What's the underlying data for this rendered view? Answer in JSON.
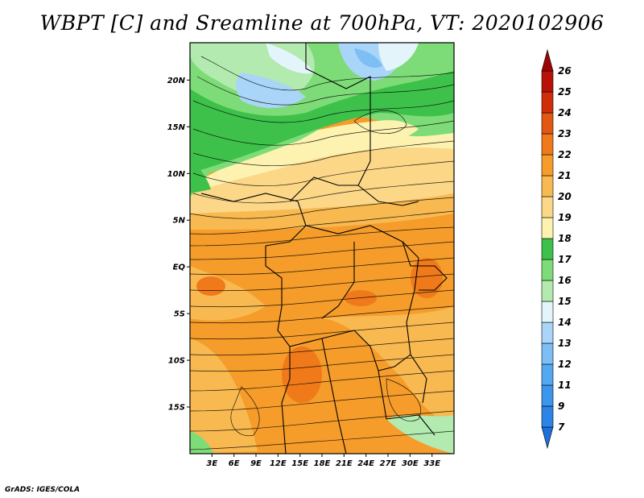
{
  "title": "WBPT [C] and Sreamline at 700hPa, VT: 2020102906",
  "credit": "GrADS: IGES/COLA",
  "map": {
    "variable": "Wet-bulb potential temperature (WBPT) with streamlines",
    "level": "700hPa",
    "valid_time": "2020102906",
    "lat_range": [
      -20,
      24
    ],
    "lon_range": [
      0,
      36
    ],
    "lat_ticks": [
      {
        "label": "20N",
        "value": 20
      },
      {
        "label": "15N",
        "value": 15
      },
      {
        "label": "10N",
        "value": 10
      },
      {
        "label": "5N",
        "value": 5
      },
      {
        "label": "EQ",
        "value": 0
      },
      {
        "label": "5S",
        "value": -5
      },
      {
        "label": "10S",
        "value": -10
      },
      {
        "label": "15S",
        "value": -15
      }
    ],
    "lon_ticks": [
      {
        "label": "3E",
        "value": 3
      },
      {
        "label": "6E",
        "value": 6
      },
      {
        "label": "9E",
        "value": 9
      },
      {
        "label": "12E",
        "value": 12
      },
      {
        "label": "15E",
        "value": 15
      },
      {
        "label": "18E",
        "value": 18
      },
      {
        "label": "21E",
        "value": 21
      },
      {
        "label": "24E",
        "value": 24
      },
      {
        "label": "27E",
        "value": 27
      },
      {
        "label": "30E",
        "value": 30
      },
      {
        "label": "33E",
        "value": 33
      }
    ]
  },
  "colorbar": {
    "levels": [
      "7",
      "9",
      "11",
      "12",
      "13",
      "14",
      "15",
      "16",
      "17",
      "18",
      "19",
      "20",
      "21",
      "22",
      "23",
      "24",
      "25",
      "26"
    ],
    "colors": [
      "#1e6fd9",
      "#2b84e6",
      "#3c96ee",
      "#54a8f2",
      "#7dbef5",
      "#a9d5f8",
      "#e3f5fb",
      "#b3eab0",
      "#7edc78",
      "#3dc14a",
      "#fdf2b0",
      "#fbd787",
      "#f8b950",
      "#f59c2a",
      "#f07a1a",
      "#e35710",
      "#d02e0a",
      "#b81208",
      "#9a0606"
    ]
  }
}
